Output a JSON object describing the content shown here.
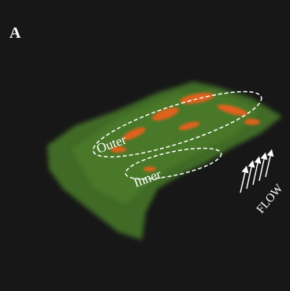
{
  "panel_label": "A",
  "regions": [
    {
      "label": "Outer"
    },
    {
      "label": "Inner"
    }
  ],
  "flow_label": "FLOW"
}
